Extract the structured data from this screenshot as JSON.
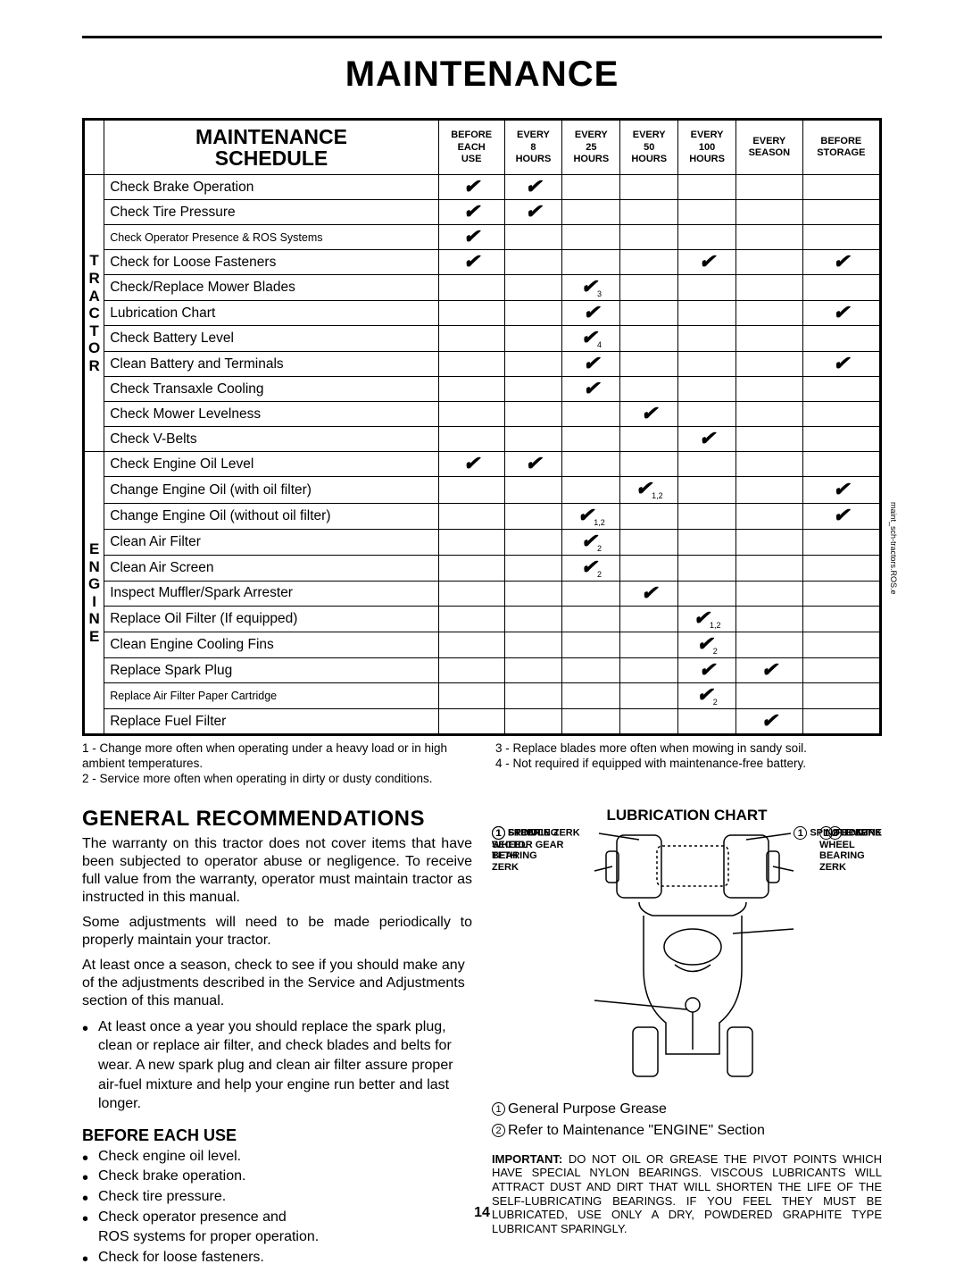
{
  "page_title": "MAINTENANCE",
  "page_number": "14",
  "side_code": "maint_sch-tractors.ROS.e",
  "schedule": {
    "title_line1": "MAINTENANCE",
    "title_line2": "SCHEDULE",
    "columns": [
      {
        "l1": "BEFORE",
        "l2": "EACH",
        "l3": "USE"
      },
      {
        "l1": "EVERY",
        "l2": "8",
        "l3": "HOURS"
      },
      {
        "l1": "EVERY",
        "l2": "25",
        "l3": "HOURS"
      },
      {
        "l1": "EVERY",
        "l2": "50",
        "l3": "HOURS"
      },
      {
        "l1": "EVERY",
        "l2": "100",
        "l3": "HOURS"
      },
      {
        "l1": "EVERY",
        "l2": "SEASON",
        "l3": ""
      },
      {
        "l1": "BEFORE",
        "l2": "STORAGE",
        "l3": ""
      }
    ],
    "groups": [
      {
        "label": "T\nR\nA\nC\nT\nO\nR",
        "rows": [
          {
            "task": "Check Brake Operation",
            "marks": [
              "✔",
              "✔",
              "",
              "",
              "",
              "",
              ""
            ]
          },
          {
            "task": "Check Tire Pressure",
            "marks": [
              "✔",
              "✔",
              "",
              "",
              "",
              "",
              ""
            ]
          },
          {
            "task": "Check Operator Presence & ROS Systems",
            "small": true,
            "marks": [
              "✔",
              "",
              "",
              "",
              "",
              "",
              ""
            ]
          },
          {
            "task": "Check for Loose Fasteners",
            "marks": [
              "✔",
              "",
              "",
              "",
              "✔",
              "",
              "✔"
            ]
          },
          {
            "task": "Check/Replace Mower Blades",
            "marks": [
              "",
              "",
              "✔",
              "",
              "",
              "",
              ""
            ],
            "note": "3"
          },
          {
            "task": "Lubrication Chart",
            "marks": [
              "",
              "",
              "✔",
              "",
              "",
              "",
              "✔"
            ]
          },
          {
            "task": "Check Battery Level",
            "marks": [
              "",
              "",
              "✔",
              "",
              "",
              "",
              ""
            ],
            "note": "4"
          },
          {
            "task": "Clean Battery and Terminals",
            "marks": [
              "",
              "",
              "✔",
              "",
              "",
              "",
              "✔"
            ]
          },
          {
            "task": "Check Transaxle Cooling",
            "marks": [
              "",
              "",
              "✔",
              "",
              "",
              "",
              ""
            ]
          },
          {
            "task": "Check Mower Levelness",
            "marks": [
              "",
              "",
              "",
              "✔",
              "",
              "",
              ""
            ]
          },
          {
            "task": "Check V-Belts",
            "marks": [
              "",
              "",
              "",
              "",
              "✔",
              "",
              ""
            ]
          }
        ]
      },
      {
        "label": "E\nN\nG\nI\nN\nE",
        "rows": [
          {
            "task": "Check Engine Oil Level",
            "marks": [
              "✔",
              "✔",
              "",
              "",
              "",
              "",
              ""
            ]
          },
          {
            "task": "Change Engine Oil (with oil filter)",
            "marks": [
              "",
              "",
              "",
              "✔",
              "",
              "",
              "✔"
            ],
            "note": "1,2"
          },
          {
            "task": "Change Engine Oil (without oil filter)",
            "marks": [
              "",
              "",
              "✔",
              "",
              "",
              "",
              "✔"
            ],
            "note": "1,2"
          },
          {
            "task": "Clean Air Filter",
            "marks": [
              "",
              "",
              "✔",
              "",
              "",
              "",
              ""
            ],
            "note": "2"
          },
          {
            "task": "Clean Air Screen",
            "marks": [
              "",
              "",
              "✔",
              "",
              "",
              "",
              ""
            ],
            "note": "2"
          },
          {
            "task": "Inspect Muffler/Spark Arrester",
            "marks": [
              "",
              "",
              "",
              "✔",
              "",
              "",
              ""
            ]
          },
          {
            "task": "Replace Oil Filter (If equipped)",
            "marks": [
              "",
              "",
              "",
              "",
              "✔",
              "",
              ""
            ],
            "note": "1,2"
          },
          {
            "task": "Clean Engine Cooling Fins",
            "marks": [
              "",
              "",
              "",
              "",
              "✔",
              "",
              ""
            ],
            "note": "2"
          },
          {
            "task": "Replace Spark Plug",
            "marks": [
              "",
              "",
              "",
              "",
              "✔",
              "✔",
              ""
            ]
          },
          {
            "task": "Replace Air Filter Paper Cartridge",
            "small": true,
            "marks": [
              "",
              "",
              "",
              "",
              "✔",
              "",
              ""
            ],
            "note": "2"
          },
          {
            "task": "Replace Fuel Filter",
            "marks": [
              "",
              "",
              "",
              "",
              "",
              "✔",
              ""
            ]
          }
        ]
      }
    ],
    "footnotes_left": [
      "1 - Change more often when operating under a heavy load or in high ambient temperatures.",
      "2 - Service more often when operating in dirty or dusty conditions."
    ],
    "footnotes_right": [
      "3 - Replace blades more often when mowing in sandy soil.",
      "4 - Not required if equipped with maintenance-free battery."
    ]
  },
  "general": {
    "heading": "GENERAL RECOMMENDATIONS",
    "p1": "The warranty on this tractor does not cover items that have been subjected to operator abuse or negligence. To receive full value from the warranty, operator must maintain tractor as instructed in this manual.",
    "p2": "Some adjustments will need to be made periodically to properly maintain your tractor.",
    "p3": "At least once a season, check to see if you should make any of the adjustments described in the Service and Adjustments section of this manual.",
    "bullet": "At least once a year you should replace the spark plug, clean or replace air filter, and check blades and belts for wear.  A new spark plug and clean air filter assure proper air-fuel mixture and help your engine run better and last longer."
  },
  "before_each": {
    "heading": "BEFORE EACH USE",
    "items": [
      "Check engine oil level.",
      "Check brake operation.",
      "Check tire pressure.",
      "Check operator presence and",
      "ROS systems for proper operation.",
      "Check for loose fasteners."
    ]
  },
  "lubrication": {
    "heading": "LUBRICATION CHART",
    "labels": {
      "spindle_left": "SPINDLE ZERK",
      "spindle_right": "SPINDLE ZERK",
      "front_left": "FRONT\nWHEEL\nBEARING\nZERK",
      "front_right": "FRONT\nWHEEL\nBEARING\nZERK",
      "engine": "ENGINE",
      "steering": "STEERING\nSECTOR GEAR\nTETH"
    },
    "legend1": "General Purpose Grease",
    "legend2": "Refer to Maintenance \"ENGINE\" Section",
    "important": "IMPORTANT:  DO NOT OIL OR GREASE THE PIVOT POINTS WHICH HAVE SPECIAL NYLON BEARINGS.  VISCOUS LUBRICANTS WILL ATTRACT DUST AND DIRT THAT WILL SHORTEN THE LIFE OF THE SELF-LUBRICATING BEARINGS.  IF YOU FEEL THEY MUST BE LUBRICATED, USE ONLY A DRY, POWDERED GRAPHITE TYPE LUBRICANT SPARINGLY."
  }
}
